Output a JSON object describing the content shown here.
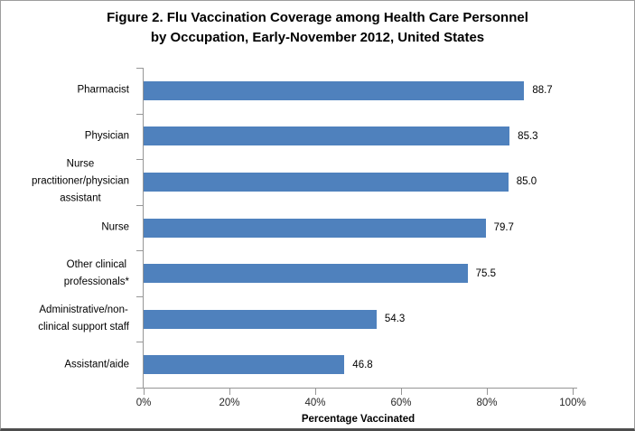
{
  "title": {
    "line1": "Figure 2. Flu Vaccination Coverage among Health Care Personnel",
    "line2": "by Occupation, Early-November 2012, United States"
  },
  "chart_data": {
    "type": "bar",
    "orientation": "horizontal",
    "title": "Figure 2. Flu Vaccination Coverage among Health Care Personnel by Occupation, Early-November 2012, United States",
    "categories": [
      "Pharmacist",
      "Physician",
      "Nurse practitioner/physician assistant",
      "Nurse",
      "Other clinical professionals*",
      "Administrative/non-clinical support staff",
      "Assistant/aide"
    ],
    "category_display_lines": [
      [
        "Pharmacist"
      ],
      [
        "Physician"
      ],
      [
        "Nurse",
        "practitioner/physician",
        "assistant"
      ],
      [
        "Nurse"
      ],
      [
        "Other clinical",
        "professionals*"
      ],
      [
        "Administrative/non-",
        "clinical support staff"
      ],
      [
        "Assistant/aide"
      ]
    ],
    "values": [
      88.7,
      85.3,
      85.0,
      79.7,
      75.5,
      54.3,
      46.8
    ],
    "data_labels": [
      "88.7",
      "85.3",
      "85.0",
      "79.7",
      "75.5",
      "54.3",
      "46.8"
    ],
    "xlabel": "Percentage Vaccinated",
    "x_ticks": [
      {
        "value": 0,
        "label": "0%"
      },
      {
        "value": 20,
        "label": "20%"
      },
      {
        "value": 40,
        "label": "40%"
      },
      {
        "value": 60,
        "label": "60%"
      },
      {
        "value": 80,
        "label": "80%"
      },
      {
        "value": 100,
        "label": "100%"
      }
    ],
    "xlim": [
      0,
      100
    ],
    "grid": false,
    "legend": false,
    "bar_color": "#4f81bd",
    "axis_color": "#969696",
    "label_color": "#000000"
  }
}
